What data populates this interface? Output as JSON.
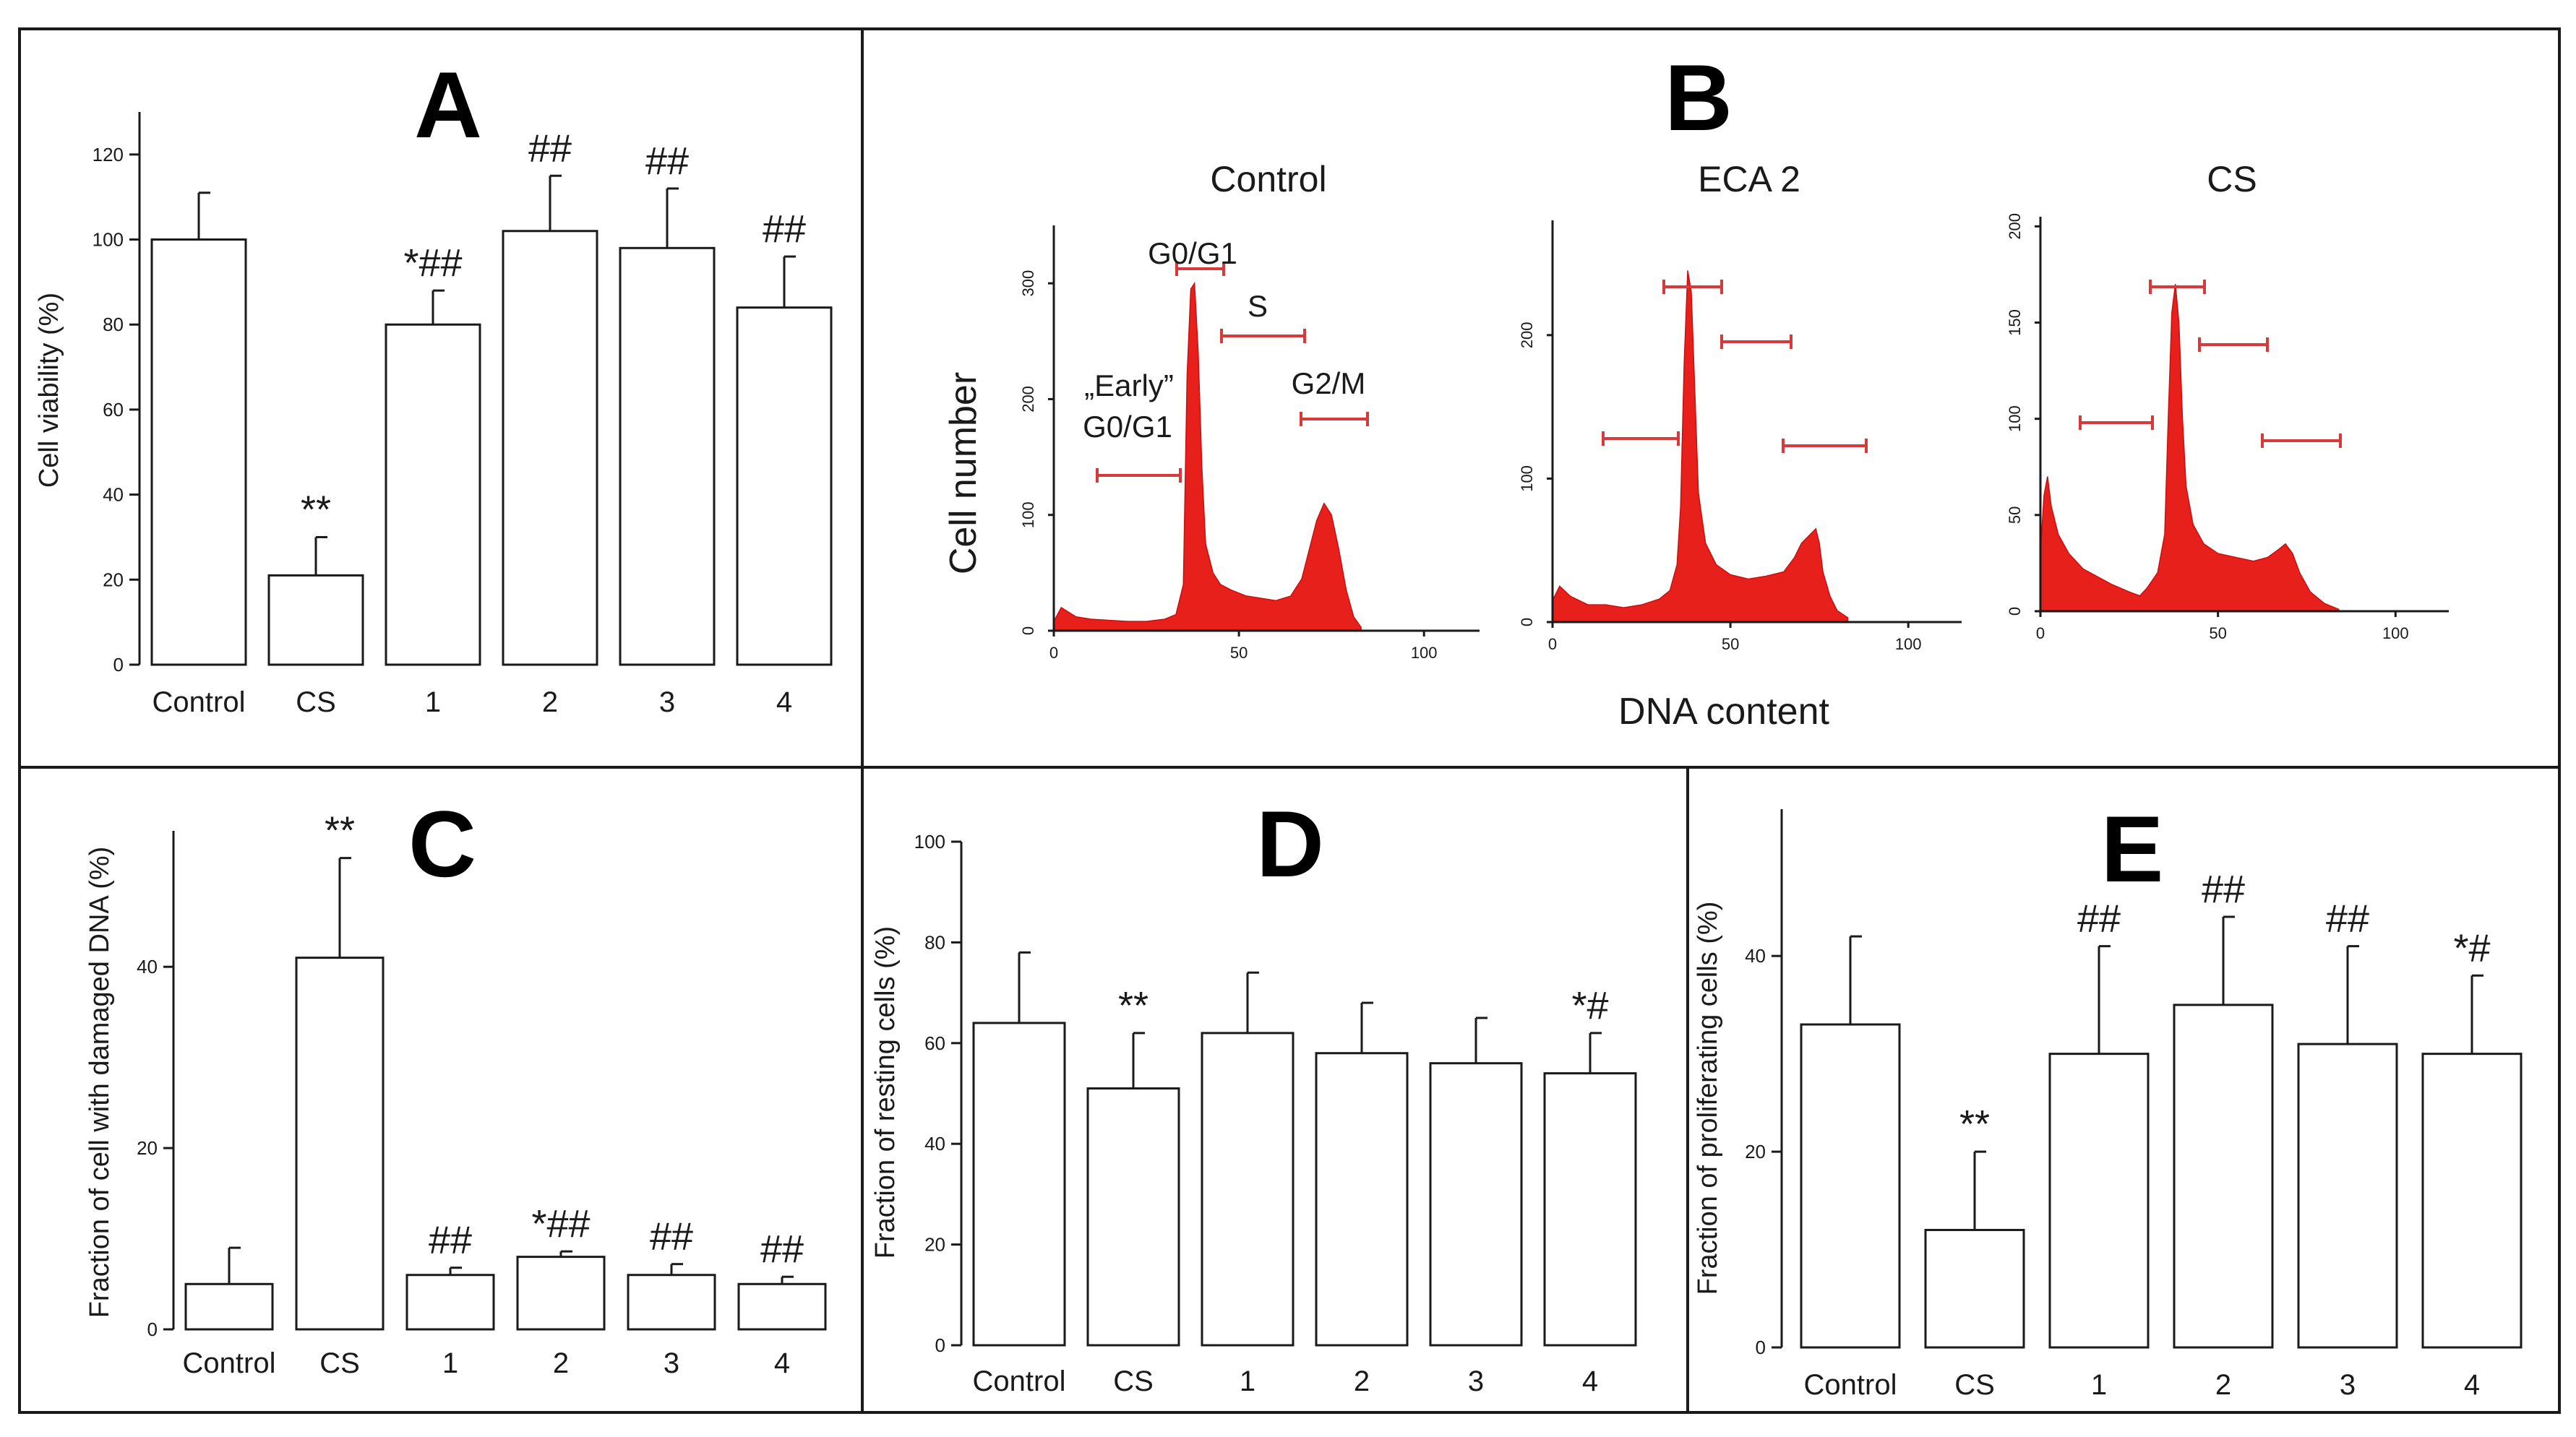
{
  "figure": {
    "panels": {
      "A": {
        "letter": "A"
      },
      "B": {
        "letter": "B"
      },
      "C": {
        "letter": "C"
      },
      "D": {
        "letter": "D"
      },
      "E": {
        "letter": "E"
      }
    },
    "histogram_axes": {
      "ylabel": "Cell number",
      "xlabel": "DNA content"
    }
  },
  "chart_data": [
    {
      "id": "A",
      "type": "bar",
      "title": "A",
      "xlabel": "",
      "ylabel": "Cell viability (%)",
      "ylim": [
        0,
        130
      ],
      "yticks": [
        0,
        20,
        40,
        60,
        80,
        100,
        120
      ],
      "grid": false,
      "categories": [
        "Control",
        "CS",
        "1",
        "2",
        "3",
        "4"
      ],
      "values": [
        100,
        21,
        80,
        102,
        98,
        84
      ],
      "errors": [
        11,
        9,
        8,
        13,
        14,
        12
      ],
      "annotations": [
        "",
        "**",
        "*##",
        "##",
        "##",
        "##"
      ]
    },
    {
      "id": "B",
      "type": "area",
      "title": "B",
      "xlabel": "DNA content",
      "ylabel": "Cell number",
      "histograms": [
        {
          "name": "Control",
          "xlim": [
            0,
            115
          ],
          "ylim": [
            0,
            350
          ],
          "xticks": [
            0,
            50,
            100
          ],
          "yticks": [
            0,
            100,
            200,
            300
          ],
          "gate_labels": [
            "G0/G1",
            "S",
            "G2/M",
            "„Early”",
            "G0/G1"
          ],
          "curve": [
            [
              0,
              8
            ],
            [
              2,
              20
            ],
            [
              6,
              12
            ],
            [
              10,
              10
            ],
            [
              15,
              9
            ],
            [
              20,
              8
            ],
            [
              25,
              8
            ],
            [
              30,
              10
            ],
            [
              33,
              14
            ],
            [
              35,
              40
            ],
            [
              36,
              220
            ],
            [
              37,
              295
            ],
            [
              38,
              300
            ],
            [
              39,
              240
            ],
            [
              40,
              140
            ],
            [
              41,
              75
            ],
            [
              43,
              50
            ],
            [
              45,
              40
            ],
            [
              48,
              35
            ],
            [
              52,
              30
            ],
            [
              56,
              28
            ],
            [
              60,
              26
            ],
            [
              64,
              30
            ],
            [
              67,
              45
            ],
            [
              69,
              70
            ],
            [
              71,
              95
            ],
            [
              73,
              110
            ],
            [
              75,
              100
            ],
            [
              77,
              70
            ],
            [
              79,
              35
            ],
            [
              81,
              12
            ],
            [
              83,
              3
            ]
          ]
        },
        {
          "name": "ECA 2",
          "xlim": [
            0,
            115
          ],
          "ylim": [
            0,
            280
          ],
          "xticks": [
            0,
            50,
            100
          ],
          "yticks": [
            0,
            100,
            200
          ],
          "gate_labels": [],
          "curve": [
            [
              0,
              15
            ],
            [
              2,
              25
            ],
            [
              5,
              18
            ],
            [
              10,
              12
            ],
            [
              15,
              12
            ],
            [
              20,
              10
            ],
            [
              25,
              12
            ],
            [
              30,
              16
            ],
            [
              33,
              22
            ],
            [
              35,
              40
            ],
            [
              36,
              80
            ],
            [
              37,
              180
            ],
            [
              38,
              245
            ],
            [
              39,
              230
            ],
            [
              40,
              160
            ],
            [
              41,
              90
            ],
            [
              43,
              55
            ],
            [
              46,
              40
            ],
            [
              50,
              33
            ],
            [
              55,
              30
            ],
            [
              60,
              32
            ],
            [
              65,
              35
            ],
            [
              68,
              45
            ],
            [
              70,
              55
            ],
            [
              72,
              60
            ],
            [
              74,
              65
            ],
            [
              75,
              55
            ],
            [
              76,
              35
            ],
            [
              78,
              18
            ],
            [
              80,
              8
            ],
            [
              83,
              3
            ]
          ]
        },
        {
          "name": "CS",
          "xlim": [
            0,
            115
          ],
          "ylim": [
            0,
            205
          ],
          "xticks": [
            0,
            50,
            100
          ],
          "yticks": [
            0,
            50,
            100,
            150,
            200
          ],
          "gate_labels": [],
          "curve": [
            [
              0,
              30
            ],
            [
              1,
              60
            ],
            [
              2,
              70
            ],
            [
              3,
              55
            ],
            [
              5,
              40
            ],
            [
              8,
              30
            ],
            [
              12,
              22
            ],
            [
              16,
              18
            ],
            [
              20,
              14
            ],
            [
              25,
              10
            ],
            [
              28,
              8
            ],
            [
              30,
              12
            ],
            [
              33,
              20
            ],
            [
              35,
              40
            ],
            [
              36,
              100
            ],
            [
              37,
              155
            ],
            [
              38,
              170
            ],
            [
              39,
              150
            ],
            [
              40,
              100
            ],
            [
              41,
              65
            ],
            [
              43,
              45
            ],
            [
              46,
              35
            ],
            [
              50,
              30
            ],
            [
              55,
              28
            ],
            [
              60,
              26
            ],
            [
              64,
              28
            ],
            [
              67,
              32
            ],
            [
              69,
              35
            ],
            [
              71,
              30
            ],
            [
              73,
              20
            ],
            [
              76,
              10
            ],
            [
              80,
              4
            ],
            [
              84,
              1
            ]
          ]
        }
      ]
    },
    {
      "id": "C",
      "type": "bar",
      "title": "C",
      "xlabel": "",
      "ylabel": "Fraction of cell with damaged DNA (%)",
      "ylim": [
        0,
        55
      ],
      "yticks": [
        0,
        20,
        40
      ],
      "grid": false,
      "categories": [
        "Control",
        "CS",
        "1",
        "2",
        "3",
        "4"
      ],
      "values": [
        5,
        41,
        6,
        8,
        6,
        5
      ],
      "errors": [
        4,
        11,
        0.8,
        0.6,
        1.2,
        0.8
      ],
      "annotations": [
        "",
        "**",
        "##",
        "*##",
        "##",
        "##"
      ]
    },
    {
      "id": "D",
      "type": "bar",
      "title": "D",
      "xlabel": "",
      "ylabel": "Fraction of resting cells (%)",
      "ylim": [
        0,
        100
      ],
      "yticks": [
        0,
        20,
        40,
        60,
        80,
        100
      ],
      "grid": false,
      "categories": [
        "Control",
        "CS",
        "1",
        "2",
        "3",
        "4"
      ],
      "values": [
        64,
        51,
        62,
        58,
        56,
        54
      ],
      "errors": [
        14,
        11,
        12,
        10,
        9,
        8
      ],
      "annotations": [
        "",
        "**",
        "",
        "",
        "",
        "*#"
      ]
    },
    {
      "id": "E",
      "type": "bar",
      "title": "E",
      "xlabel": "",
      "ylabel": "Fraction of proliferating cells (%)",
      "ylim": [
        0,
        55
      ],
      "yticks": [
        0,
        20,
        40
      ],
      "grid": false,
      "categories": [
        "Control",
        "CS",
        "1",
        "2",
        "3",
        "4"
      ],
      "values": [
        33,
        12,
        30,
        35,
        31,
        30
      ],
      "errors": [
        9,
        8,
        11,
        9,
        10,
        8
      ],
      "annotations": [
        "",
        "**",
        "##",
        "##",
        "##",
        "*#"
      ]
    }
  ]
}
